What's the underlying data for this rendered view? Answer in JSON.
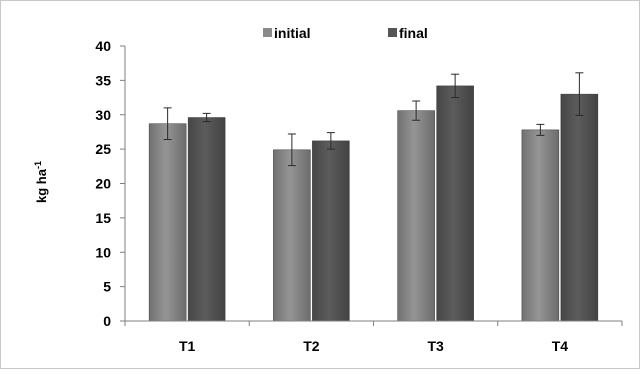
{
  "colors": {
    "initial": "#8a8a8a",
    "final": "#555555",
    "axis": "#7f7f7f",
    "border": "#c8c8c8",
    "error_bar": "#2a2a2a"
  },
  "chart_data": {
    "type": "bar",
    "title": "",
    "xlabel": "",
    "ylabel_base": "kg ha",
    "ylabel_sup": "-1",
    "categories": [
      "T1",
      "T2",
      "T3",
      "T4"
    ],
    "series": [
      {
        "name": "initial",
        "values": [
          28.7,
          24.9,
          30.6,
          27.8
        ],
        "error": [
          2.3,
          2.3,
          1.4,
          0.8
        ]
      },
      {
        "name": "final",
        "values": [
          29.6,
          26.2,
          34.2,
          33.0
        ],
        "error": [
          0.6,
          1.2,
          1.7,
          3.1
        ]
      }
    ],
    "ylim": [
      0,
      40
    ],
    "yticks": [
      0,
      5,
      10,
      15,
      20,
      25,
      30,
      35,
      40
    ],
    "grid": false,
    "legend_position": "top"
  }
}
